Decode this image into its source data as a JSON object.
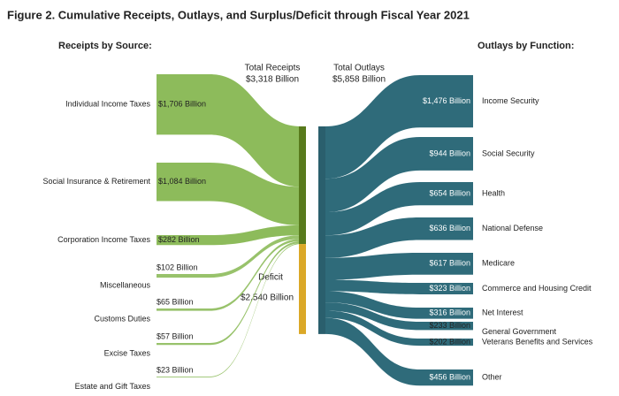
{
  "chart_data": {
    "type": "sankey",
    "title": "Figure 2. Cumulative Receipts, Outlays, and Surplus/Deficit through Fiscal Year 2021",
    "receipts": {
      "heading": "Receipts by Source:",
      "total_label": "Total Receipts",
      "total": 3318,
      "total_value_label": "$3,318 Billion",
      "color": "#8dbb5b",
      "bar_color": "#587a1c",
      "categories": [
        "Individual Income Taxes",
        "Social Insurance & Retirement",
        "Corporation Income Taxes",
        "Miscellaneous",
        "Customs Duties",
        "Excise Taxes",
        "Estate and Gift Taxes"
      ],
      "values": [
        1706,
        1084,
        282,
        102,
        65,
        57,
        23
      ],
      "value_labels": [
        "$1,706 Billion",
        "$1,084 Billion",
        "$282 Billion",
        "$102 Billion",
        "$65 Billion",
        "$57 Billion",
        "$23 Billion"
      ]
    },
    "deficit": {
      "label": "Deficit",
      "value": 2540,
      "value_label": "$2,540 Billion",
      "color": "#dba827"
    },
    "outlays": {
      "heading": "Outlays by Function:",
      "total_label": "Total Outlays",
      "total": 5858,
      "total_value_label": "$5,858 Billion",
      "color": "#2f6b7a",
      "bar_color": "#2a5f6d",
      "categories": [
        "Income Security",
        "Social Security",
        "Health",
        "National Defense",
        "Medicare",
        "Commerce and Housing Credit",
        "Net Interest",
        "General Government",
        "Veterans Benefits and Services",
        "Other"
      ],
      "values": [
        1476,
        944,
        654,
        636,
        617,
        323,
        316,
        233,
        202,
        456
      ],
      "value_labels": [
        "$1,476 Billion",
        "$944 Billion",
        "$654 Billion",
        "$636 Billion",
        "$617 Billion",
        "$323 Billion",
        "$316 Billion",
        "$233 Billion",
        "$202 Billion",
        "$456 Billion"
      ]
    }
  }
}
